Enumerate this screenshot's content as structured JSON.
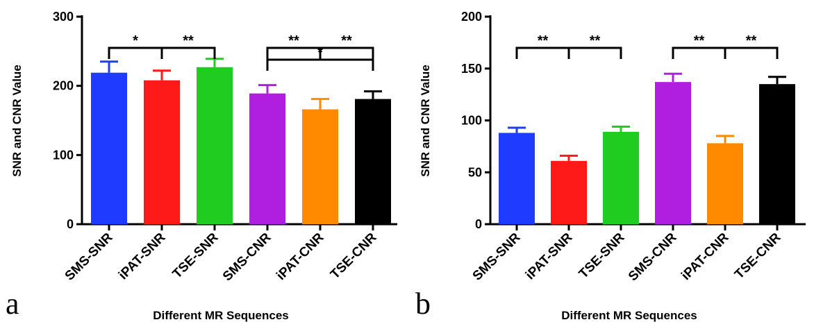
{
  "chart_data": [
    {
      "type": "bar",
      "panel_label": "a",
      "categories": [
        "SMS-SNR",
        "iPAT-SNR",
        "TSE-SNR",
        "SMS-CNR",
        "iPAT-CNR",
        "TSE-CNR"
      ],
      "values": [
        219,
        208,
        227,
        189,
        166,
        181
      ],
      "errors": [
        16,
        14,
        12,
        12,
        15,
        11
      ],
      "colors": [
        "#1f3bff",
        "#ff1a1a",
        "#1fcc1f",
        "#b01fe0",
        "#ff8a00",
        "#000000"
      ],
      "ylim": [
        0,
        300
      ],
      "yticks": [
        0,
        100,
        200,
        300
      ],
      "xlabel": "Different MR Sequences",
      "ylabel": "SNR and CNR Value",
      "significance": [
        {
          "from": 0,
          "to": 1,
          "label": "*",
          "level": 0
        },
        {
          "from": 1,
          "to": 2,
          "label": "**",
          "level": 0
        },
        {
          "from": 3,
          "to": 4,
          "label": "**",
          "level": 0
        },
        {
          "from": 4,
          "to": 5,
          "label": "**",
          "level": 0
        },
        {
          "from": 3,
          "to": 5,
          "label": "*",
          "level": 1
        }
      ]
    },
    {
      "type": "bar",
      "panel_label": "b",
      "categories": [
        "SMS-SNR",
        "iPAT-SNR",
        "TSE-SNR",
        "SMS-CNR",
        "iPAT-CNR",
        "TSE-CNR"
      ],
      "values": [
        88,
        61,
        89,
        137,
        78,
        135
      ],
      "errors": [
        5,
        5,
        5,
        8,
        7,
        7
      ],
      "colors": [
        "#1f3bff",
        "#ff1a1a",
        "#1fcc1f",
        "#b01fe0",
        "#ff8a00",
        "#000000"
      ],
      "ylim": [
        0,
        200
      ],
      "yticks": [
        0,
        50,
        100,
        150,
        200
      ],
      "xlabel": "Different MR Sequences",
      "ylabel": "SNR and CNR Value",
      "significance": [
        {
          "from": 0,
          "to": 1,
          "label": "**",
          "level": 0
        },
        {
          "from": 1,
          "to": 2,
          "label": "**",
          "level": 0
        },
        {
          "from": 3,
          "to": 4,
          "label": "**",
          "level": 0
        },
        {
          "from": 4,
          "to": 5,
          "label": "**",
          "level": 0
        }
      ]
    }
  ]
}
